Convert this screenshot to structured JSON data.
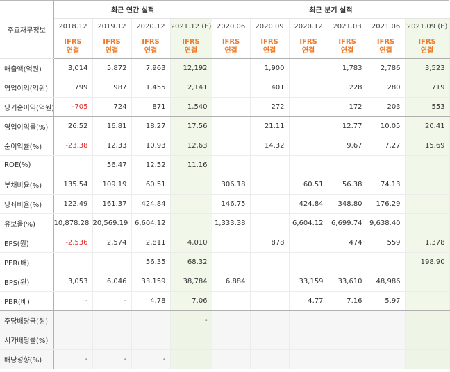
{
  "header": {
    "item_label": "주요재무정보",
    "annual_title": "최근 연간 실적",
    "quarterly_title": "최근 분기 실적",
    "periods": [
      "2018.12",
      "2019.12",
      "2020.12",
      "2021.12 (E)",
      "2020.06",
      "2020.09",
      "2020.12",
      "2021.03",
      "2021.06",
      "2021.09 (E)"
    ],
    "ifrs_top": "IFRS",
    "ifrs_bottom": "연결"
  },
  "colors": {
    "accent": "#f07a27",
    "negative": "#e02a2a",
    "estimate_bg": "#f1f8ea",
    "estimate_text": "#3f8a2f"
  },
  "rows": [
    {
      "label": "매출액(억원)",
      "values": [
        "3,014",
        "5,872",
        "7,963",
        "12,192",
        "",
        "1,900",
        "",
        "1,783",
        "2,786",
        "3,523"
      ]
    },
    {
      "label": "영업이익(억원)",
      "values": [
        "799",
        "987",
        "1,455",
        "2,141",
        "",
        "401",
        "",
        "228",
        "280",
        "719"
      ]
    },
    {
      "label": "당기순이익(억원)",
      "values": [
        "-705",
        "724",
        "871",
        "1,540",
        "",
        "272",
        "",
        "172",
        "203",
        "553"
      ]
    },
    {
      "label": "영업이익률(%)",
      "values": [
        "26.52",
        "16.81",
        "18.27",
        "17.56",
        "",
        "21.11",
        "",
        "12.77",
        "10.05",
        "20.41"
      ]
    },
    {
      "label": "순이익률(%)",
      "values": [
        "-23.38",
        "12.33",
        "10.93",
        "12.63",
        "",
        "14.32",
        "",
        "9.67",
        "7.27",
        "15.69"
      ]
    },
    {
      "label": "ROE(%)",
      "values": [
        "",
        "56.47",
        "12.52",
        "11.16",
        "",
        "",
        "",
        "",
        "",
        ""
      ]
    },
    {
      "label": "부채비율(%)",
      "values": [
        "135.54",
        "109.19",
        "60.51",
        "",
        "306.18",
        "",
        "60.51",
        "56.38",
        "74.13",
        ""
      ]
    },
    {
      "label": "당좌비율(%)",
      "values": [
        "122.49",
        "161.37",
        "424.84",
        "",
        "146.75",
        "",
        "424.84",
        "348.80",
        "176.29",
        ""
      ]
    },
    {
      "label": "유보율(%)",
      "values": [
        "10,878.28",
        "20,569.19",
        "6,604.12",
        "",
        "1,333.38",
        "",
        "6,604.12",
        "6,699.74",
        "9,638.40",
        ""
      ]
    },
    {
      "label": "EPS(원)",
      "values": [
        "-2,536",
        "2,574",
        "2,811",
        "4,010",
        "",
        "878",
        "",
        "474",
        "559",
        "1,378"
      ]
    },
    {
      "label": "PER(배)",
      "values": [
        "",
        "",
        "56.35",
        "68.32",
        "",
        "",
        "",
        "",
        "",
        "198.90"
      ]
    },
    {
      "label": "BPS(원)",
      "values": [
        "3,053",
        "6,046",
        "33,159",
        "38,784",
        "6,884",
        "",
        "33,159",
        "33,610",
        "48,986",
        ""
      ]
    },
    {
      "label": "PBR(배)",
      "values": [
        "-",
        "-",
        "4.78",
        "7.06",
        "",
        "",
        "4.77",
        "7.16",
        "5.97",
        ""
      ]
    },
    {
      "label": "주당배당금(원)",
      "values": [
        "",
        "",
        "",
        "-",
        "",
        "",
        "",
        "",
        "",
        ""
      ]
    },
    {
      "label": "시가배당률(%)",
      "values": [
        "",
        "",
        "",
        "",
        "",
        "",
        "",
        "",
        "",
        ""
      ]
    },
    {
      "label": "배당성향(%)",
      "values": [
        "-",
        "-",
        "-",
        "",
        "",
        "",
        "",
        "",
        "",
        ""
      ]
    }
  ]
}
